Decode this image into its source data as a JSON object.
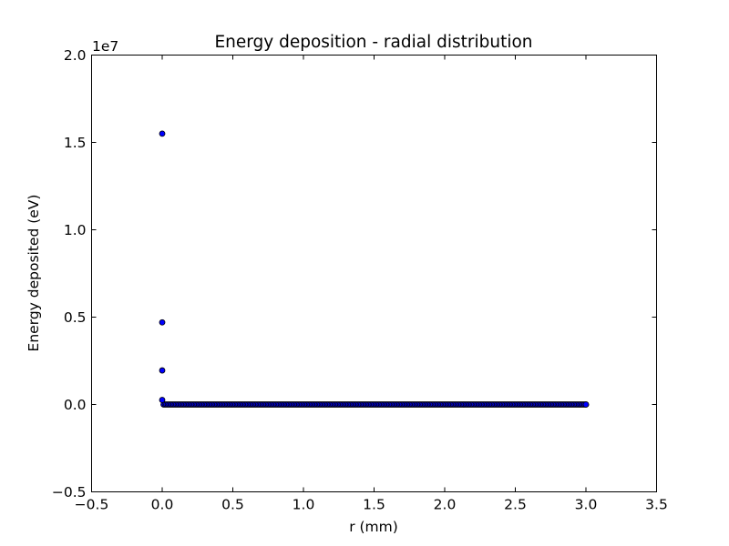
{
  "chart_data": {
    "type": "scatter",
    "title": "Energy deposition - radial distribution",
    "xlabel": "r (mm)",
    "ylabel": "Energy deposited (eV)",
    "xlim": [
      -0.5,
      3.5
    ],
    "ylim": [
      -5000000,
      20000000
    ],
    "x_ticks": [
      -0.5,
      0.0,
      0.5,
      1.0,
      1.5,
      2.0,
      2.5,
      3.0,
      3.5
    ],
    "x_tick_labels": [
      "−0.5",
      "0.0",
      "0.5",
      "1.0",
      "1.5",
      "2.0",
      "2.5",
      "3.0",
      "3.5"
    ],
    "y_ticks": [
      -5000000,
      0,
      5000000,
      10000000,
      15000000,
      20000000
    ],
    "y_tick_labels": [
      "−0.5",
      "0.0",
      "0.5",
      "1.0",
      "1.5",
      "2.0"
    ],
    "y_offset_label": "1e7",
    "grid": false,
    "marker_color": "#0000ff",
    "marker_edge_color": "#000000",
    "series": [
      {
        "points": [
          {
            "x": 0.0,
            "y": 15500000
          },
          {
            "x": 0.0,
            "y": 4700000
          },
          {
            "x": 0.0,
            "y": 1950000
          },
          {
            "x": 0.0,
            "y": 260000
          },
          {
            "x": 3.0,
            "y": 0
          }
        ],
        "dense_range": {
          "x_start": 0.0,
          "x_end": 3.0,
          "step": 0.01,
          "y": 0
        }
      }
    ]
  }
}
